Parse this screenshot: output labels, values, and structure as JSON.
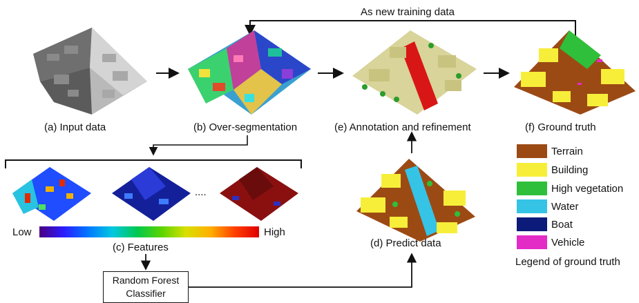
{
  "captions": {
    "a": "(a)  Input data",
    "b": "(b) Over-segmentation",
    "c": "(c) Features",
    "d": "(d) Predict data",
    "e": "(e) Annotation and refinement",
    "f": "(f) Ground truth"
  },
  "feedback_label": "As new training data",
  "scale": {
    "low": "Low",
    "high": "High"
  },
  "ellipsis": "....",
  "classifier": {
    "line1": "Random Forest",
    "line2": "Classifier"
  },
  "legend": {
    "title": "Legend of ground truth",
    "items": [
      {
        "label": "Terrain",
        "color": "#9c4a14"
      },
      {
        "label": "Building",
        "color": "#f7ee3a"
      },
      {
        "label": "High vegetation",
        "color": "#2fbf3a"
      },
      {
        "label": "Water",
        "color": "#35c3e6"
      },
      {
        "label": "Boat",
        "color": "#0c1a7a"
      },
      {
        "label": "Vehicle",
        "color": "#e32bc6"
      }
    ]
  }
}
